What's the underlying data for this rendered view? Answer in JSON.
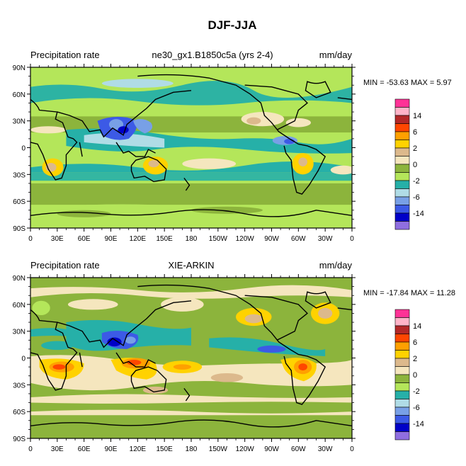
{
  "figure_title": "DJF-JJA",
  "colors": {
    "levels": [
      "#8f6ee0",
      "#0000c8",
      "#3c5ae6",
      "#78a0e6",
      "#b0dce6",
      "#26b0a8",
      "#b4e65a",
      "#8cb43c",
      "#f5e6be",
      "#dcb98c",
      "#ffd200",
      "#ffa000",
      "#ff4600",
      "#b42828",
      "#ffb4c8",
      "#ff3296"
    ],
    "land_outline": "#000000",
    "frame": "#000000"
  },
  "chart_data": [
    {
      "type": "heatmap",
      "title": "ne30_gx1.B1850c5a (yrs 2-4)",
      "left_label": "Precipitation rate",
      "right_label": "mm/day",
      "stats_text": "MIN = -53.63 MAX =   5.97",
      "min": -53.63,
      "max": 5.97,
      "xticks": [
        "0",
        "30E",
        "60E",
        "90E",
        "120E",
        "150E",
        "180",
        "150W",
        "120W",
        "90W",
        "60W",
        "30W",
        "0"
      ],
      "yticks": [
        "90N",
        "60N",
        "30N",
        "0",
        "30S",
        "60S",
        "90S"
      ],
      "xlim": [
        0,
        360
      ],
      "ylim": [
        -90,
        90
      ],
      "colorbar_labels": [
        "14",
        "6",
        "2",
        "0",
        "-2",
        "-6",
        "-14"
      ],
      "colorbar_levels": [
        -14,
        -10,
        -6,
        -4,
        -2,
        -1,
        0,
        1,
        2,
        4,
        6,
        10,
        14
      ]
    },
    {
      "type": "heatmap",
      "title": "XIE-ARKIN",
      "left_label": "Precipitation rate",
      "right_label": "mm/day",
      "stats_text": "MIN = -17.84 MAX =  11.28",
      "min": -17.84,
      "max": 11.28,
      "xticks": [
        "0",
        "30E",
        "60E",
        "90E",
        "120E",
        "150E",
        "180",
        "150W",
        "120W",
        "90W",
        "60W",
        "30W",
        "0"
      ],
      "yticks": [
        "90N",
        "60N",
        "30N",
        "0",
        "30S",
        "60S",
        "90S"
      ],
      "xlim": [
        0,
        360
      ],
      "ylim": [
        -90,
        90
      ],
      "colorbar_labels": [
        "14",
        "6",
        "2",
        "0",
        "-2",
        "-6",
        "-14"
      ],
      "colorbar_levels": [
        -14,
        -10,
        -6,
        -4,
        -2,
        -1,
        0,
        1,
        2,
        4,
        6,
        10,
        14
      ]
    }
  ]
}
